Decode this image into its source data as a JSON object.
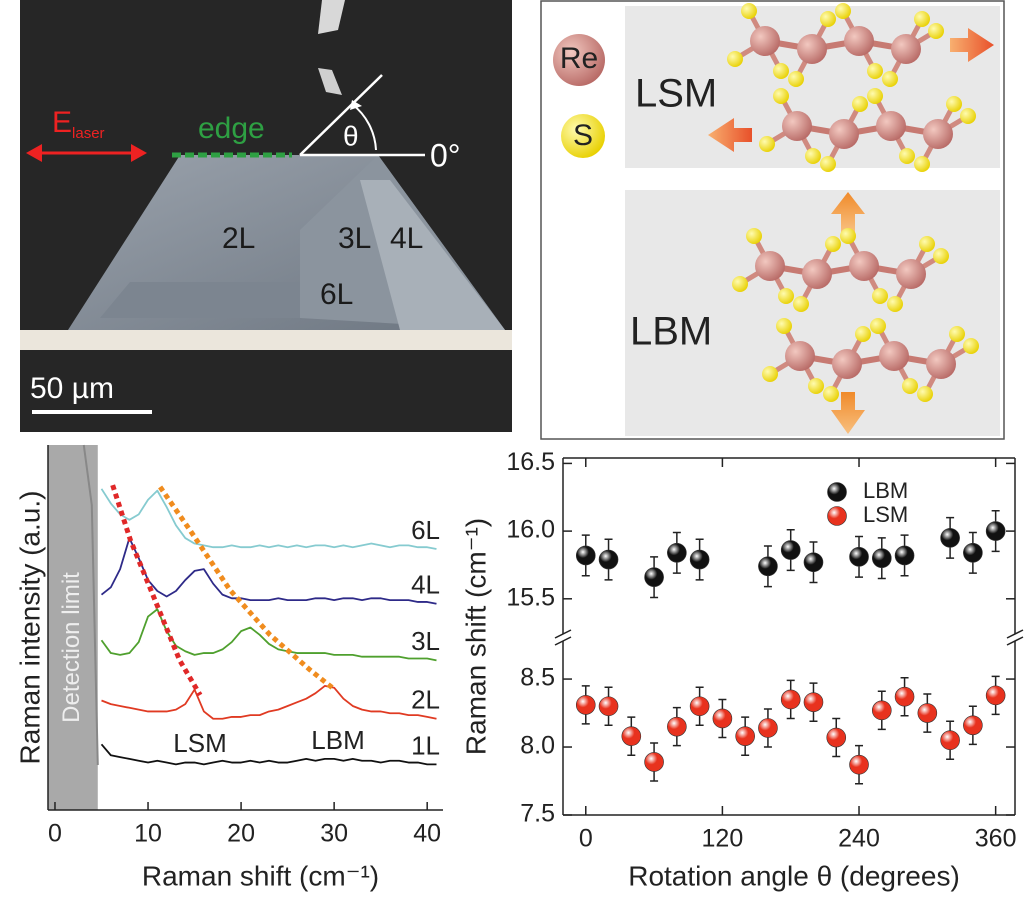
{
  "micrograph": {
    "e_field": {
      "main": "E",
      "sub": "laser"
    },
    "edge": "edge",
    "angle": "θ",
    "zero": "0°",
    "layers": [
      "2L",
      "3L",
      "4L",
      "6L"
    ],
    "scale_bar": "50 µm"
  },
  "schematic": {
    "atoms": [
      "Re",
      "S"
    ],
    "modes": [
      "LSM",
      "LBM"
    ]
  },
  "chart_data": [
    {
      "type": "line",
      "xlabel": "Raman shift (cm⁻¹)",
      "ylabel": "Raman intensity (a.u.)",
      "xlim": [
        -0.75,
        41.7
      ],
      "xticks": [
        0,
        10,
        20,
        30,
        40
      ],
      "ylim": [
        0,
        10
      ],
      "detection_limit": 4.6,
      "detection_label": "Detection limit",
      "annotations": [
        "LSM",
        "LBM"
      ],
      "x": [
        5,
        6,
        7,
        8,
        9,
        10,
        11,
        12,
        13,
        14,
        15,
        16,
        17,
        18,
        19,
        20,
        21,
        22,
        23,
        24,
        25,
        26,
        27,
        28,
        29,
        30,
        31,
        32,
        33,
        34,
        35,
        36,
        37,
        38,
        39,
        40,
        41
      ],
      "series": [
        {
          "name": "1L",
          "color": "#111111",
          "values": [
            1.8,
            1.5,
            1.45,
            1.4,
            1.35,
            1.3,
            1.35,
            1.3,
            1.25,
            1.3,
            1.3,
            1.25,
            1.3,
            1.35,
            1.3,
            1.3,
            1.35,
            1.3,
            1.35,
            1.3,
            1.3,
            1.35,
            1.4,
            1.35,
            1.4,
            1.4,
            1.35,
            1.4,
            1.35,
            1.35,
            1.3,
            1.35,
            1.35,
            1.3,
            1.3,
            1.25,
            1.25
          ]
        },
        {
          "name": "2L",
          "color": "#e03a22",
          "values": [
            3.0,
            2.9,
            2.85,
            2.8,
            2.75,
            2.7,
            2.7,
            2.7,
            2.75,
            2.9,
            3.3,
            2.7,
            2.5,
            2.5,
            2.55,
            2.55,
            2.6,
            2.6,
            2.7,
            2.75,
            2.85,
            2.95,
            3.05,
            3.2,
            3.4,
            3.35,
            3.05,
            2.85,
            2.75,
            2.7,
            2.7,
            2.65,
            2.65,
            2.6,
            2.6,
            2.55,
            2.5
          ]
        },
        {
          "name": "3L",
          "color": "#4fa02e",
          "values": [
            4.65,
            4.3,
            4.25,
            4.3,
            4.6,
            5.3,
            5.5,
            4.9,
            4.5,
            4.35,
            4.25,
            4.3,
            4.3,
            4.4,
            4.6,
            4.9,
            5.0,
            4.8,
            4.55,
            4.4,
            4.35,
            4.3,
            4.3,
            4.3,
            4.3,
            4.25,
            4.25,
            4.25,
            4.2,
            4.2,
            4.2,
            4.2,
            4.2,
            4.15,
            4.15,
            4.15,
            4.1
          ]
        },
        {
          "name": "4L",
          "color": "#2e2a88",
          "values": [
            5.9,
            6.1,
            6.6,
            7.45,
            6.9,
            6.3,
            6.0,
            5.85,
            6.0,
            6.3,
            6.55,
            6.6,
            6.2,
            5.9,
            5.8,
            5.8,
            5.75,
            5.75,
            5.75,
            5.8,
            5.75,
            5.75,
            5.75,
            5.8,
            5.8,
            5.75,
            5.8,
            5.8,
            5.75,
            5.8,
            5.8,
            5.75,
            5.75,
            5.75,
            5.7,
            5.7,
            5.65
          ]
        },
        {
          "name": "6L",
          "color": "#86cbd0",
          "values": [
            8.8,
            8.4,
            8.1,
            7.95,
            8.1,
            8.5,
            8.75,
            8.3,
            7.8,
            7.45,
            7.3,
            7.25,
            7.2,
            7.2,
            7.25,
            7.2,
            7.2,
            7.25,
            7.2,
            7.25,
            7.2,
            7.25,
            7.2,
            7.25,
            7.25,
            7.2,
            7.25,
            7.2,
            7.25,
            7.3,
            7.25,
            7.2,
            7.25,
            7.25,
            7.2,
            7.2,
            7.15
          ]
        }
      ],
      "trend_lines": [
        {
          "color": "#e02828",
          "x": [
            6.2,
            8.1,
            10.75,
            13.4,
            15.6
          ],
          "values": [
            8.9,
            7.4,
            5.75,
            4.1,
            3.15
          ]
        },
        {
          "color": "#f08c1e",
          "x": [
            11.3,
            14.5,
            18.8,
            23.1,
            27.4,
            30.1
          ],
          "values": [
            8.85,
            7.67,
            6.03,
            4.8,
            3.84,
            3.29
          ]
        }
      ]
    },
    {
      "type": "scatter",
      "xlabel": "Rotation angle θ (degrees)",
      "ylabel": "Raman shift (cm⁻¹)",
      "xlim": [
        -20,
        377
      ],
      "xticks": [
        0,
        120,
        240,
        360
      ],
      "ylim": [
        7.5,
        8.78
      ],
      "yticks": [
        7.5,
        {
          "value": 8,
          "label": "8.0"
        },
        8.5
      ],
      "y2lim": [
        15.24,
        16.54
      ],
      "y2ticks": [
        15.5,
        {
          "value": 16,
          "label": "16.0"
        },
        16.5
      ],
      "broken_axis": true,
      "legend": "upper right",
      "series": [
        {
          "name": "LBM",
          "color": "#111111",
          "axis": "y2",
          "x": [
            0,
            20,
            60,
            80,
            100,
            160,
            180,
            200,
            240,
            260,
            280,
            320,
            340,
            360
          ],
          "values": [
            15.82,
            15.79,
            15.66,
            15.84,
            15.79,
            15.74,
            15.86,
            15.77,
            15.81,
            15.8,
            15.82,
            15.95,
            15.84,
            16.0
          ],
          "errors": [
            0.15,
            0.15,
            0.15,
            0.15,
            0.15,
            0.15,
            0.15,
            0.15,
            0.15,
            0.15,
            0.15,
            0.15,
            0.15,
            0.15
          ]
        },
        {
          "name": "LSM",
          "color": "#e8321e",
          "x": [
            0,
            20,
            40,
            60,
            80,
            100,
            120,
            140,
            160,
            180,
            200,
            220,
            240,
            260,
            280,
            300,
            320,
            340,
            360
          ],
          "values": [
            8.31,
            8.3,
            8.08,
            7.89,
            8.15,
            8.3,
            8.21,
            8.08,
            8.14,
            8.35,
            8.33,
            8.07,
            7.87,
            8.27,
            8.37,
            8.25,
            8.05,
            8.16,
            8.38
          ],
          "errors": [
            0.14,
            0.14,
            0.14,
            0.14,
            0.14,
            0.14,
            0.14,
            0.14,
            0.14,
            0.14,
            0.14,
            0.14,
            0.14,
            0.14,
            0.14,
            0.14,
            0.14,
            0.14,
            0.14
          ]
        }
      ]
    }
  ]
}
